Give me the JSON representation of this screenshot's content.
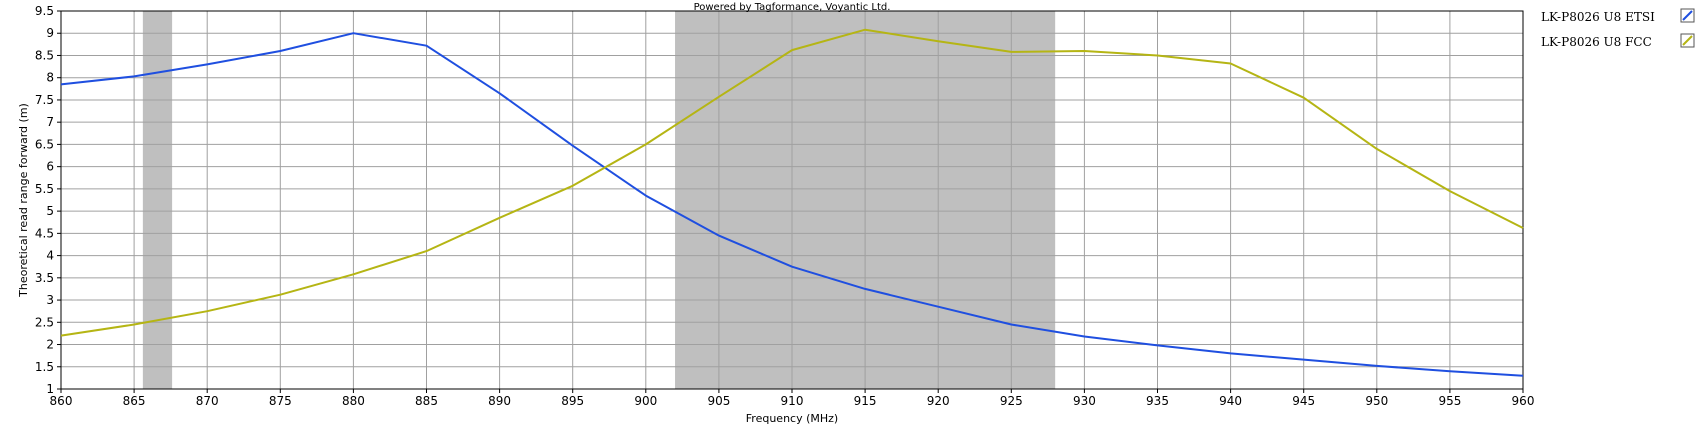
{
  "chart_data": {
    "type": "line",
    "credit": "Powered by Tagformance, Voyantic Ltd.",
    "xlabel": "Frequency (MHz)",
    "ylabel": "Theoretical read range forward (m)",
    "xlim": [
      860,
      960
    ],
    "ylim": [
      1,
      9.5
    ],
    "x_ticks": [
      860,
      865,
      870,
      875,
      880,
      885,
      890,
      895,
      900,
      905,
      910,
      915,
      920,
      925,
      930,
      935,
      940,
      945,
      950,
      955,
      960
    ],
    "y_ticks": [
      1,
      1.5,
      2,
      2.5,
      3,
      3.5,
      4,
      4.5,
      5,
      5.5,
      6,
      6.5,
      7,
      7.5,
      8,
      8.5,
      9,
      9.5
    ],
    "y_tick_labels": [
      "1",
      "1.5",
      "2",
      "2.5",
      "3",
      "3.5",
      "4",
      "4.5",
      "5",
      "5.5",
      "6",
      "6.5",
      "7",
      "7.5",
      "8",
      "8.5",
      "9",
      "9.5"
    ],
    "grid": true,
    "legend_position": "right",
    "shaded_bands": [
      {
        "x0": 865.6,
        "x1": 867.6,
        "color": "#bfbfbf"
      },
      {
        "x0": 902,
        "x1": 928,
        "color": "#bfbfbf"
      }
    ],
    "series": [
      {
        "name": "LK-P8026 U8 ETSI",
        "color": "#1f4fe0",
        "x": [
          860,
          865,
          870,
          875,
          880,
          885,
          890,
          895,
          900,
          905,
          910,
          915,
          920,
          925,
          930,
          935,
          940,
          945,
          950,
          955,
          960
        ],
        "y": [
          7.85,
          8.03,
          8.3,
          8.6,
          9.0,
          8.72,
          7.65,
          6.47,
          5.35,
          4.45,
          3.75,
          3.25,
          2.85,
          2.45,
          2.18,
          1.98,
          1.8,
          1.66,
          1.52,
          1.4,
          1.3
        ]
      },
      {
        "name": "LK-P8026 U8 FCC",
        "color": "#b5b514",
        "x": [
          860,
          865,
          870,
          875,
          880,
          885,
          890,
          895,
          900,
          905,
          910,
          915,
          920,
          925,
          930,
          935,
          940,
          945,
          950,
          955,
          960
        ],
        "y": [
          2.2,
          2.45,
          2.75,
          3.12,
          3.58,
          4.1,
          4.85,
          5.57,
          6.5,
          7.57,
          8.62,
          9.08,
          8.82,
          8.58,
          8.6,
          8.5,
          8.32,
          7.55,
          6.4,
          5.45,
          4.62
        ]
      }
    ]
  }
}
